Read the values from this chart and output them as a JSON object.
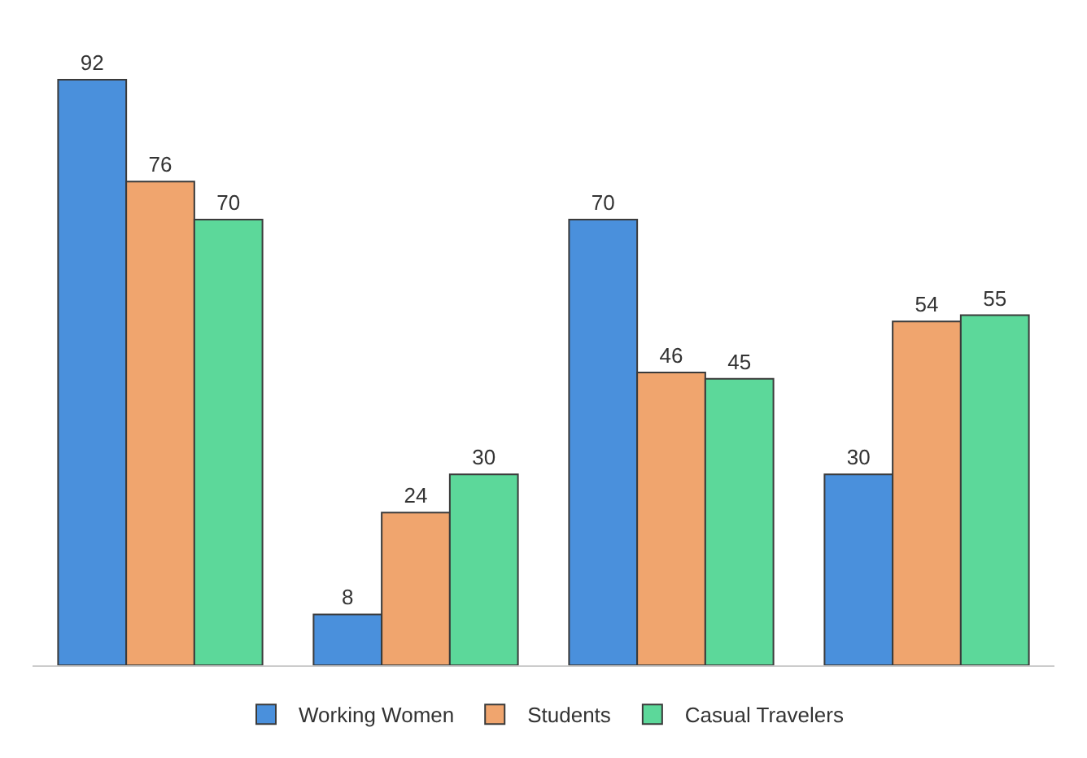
{
  "chart_data": {
    "type": "bar",
    "categories": [
      null,
      null,
      null,
      null
    ],
    "series": [
      {
        "name": "Working Women",
        "color": "#4a90dc",
        "values": [
          92,
          8,
          70,
          30
        ]
      },
      {
        "name": "Students",
        "color": "#f0a56e",
        "values": [
          76,
          24,
          46,
          54
        ]
      },
      {
        "name": "Casual Travelers",
        "color": "#5cd89a",
        "values": [
          70,
          30,
          45,
          55
        ]
      }
    ],
    "data_labels": true,
    "legend": "bottom"
  }
}
